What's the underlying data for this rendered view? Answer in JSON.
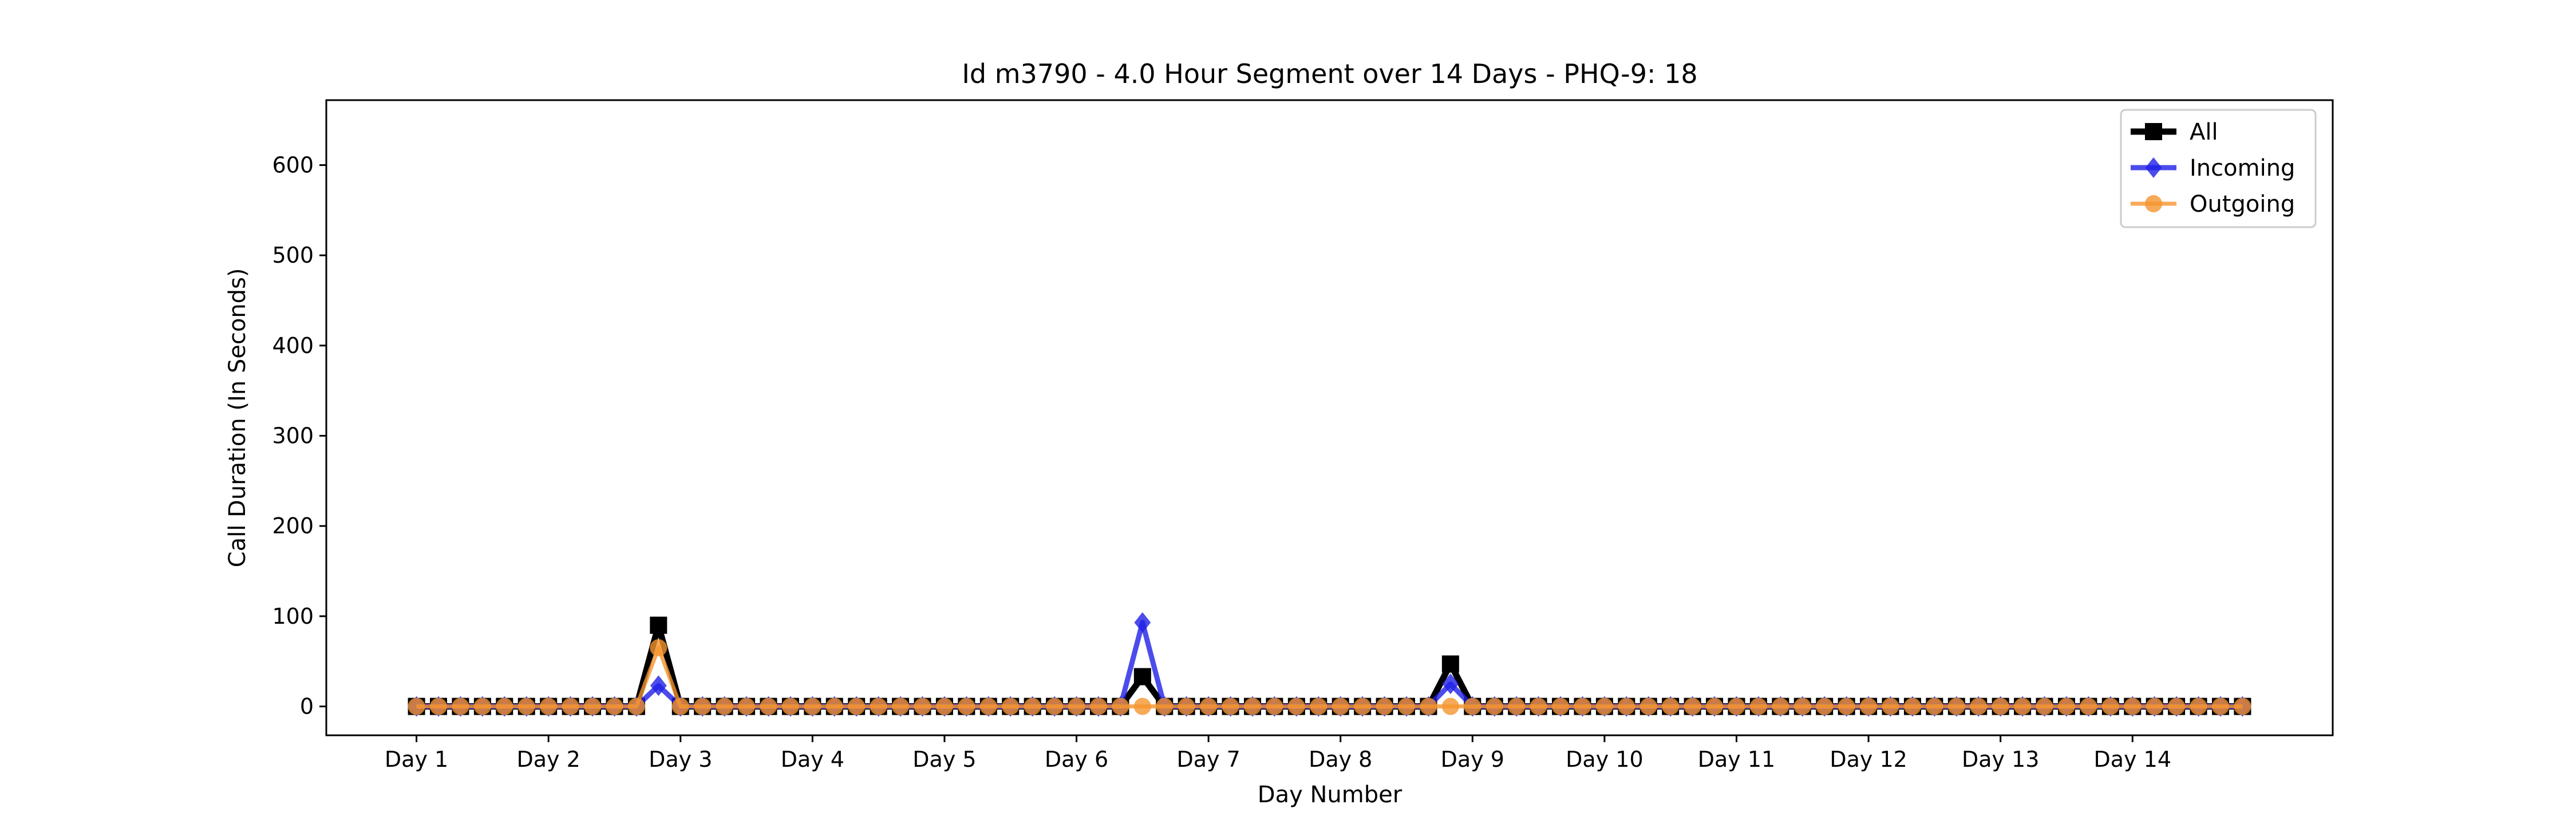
{
  "chart_data": {
    "type": "line",
    "title": "Id m3790 - 4.0 Hour Segment over 14 Days - PHQ-9: 18",
    "xlabel": "Day Number",
    "ylabel": "Call Duration (In Seconds)",
    "x": [
      0,
      1,
      2,
      3,
      4,
      5,
      6,
      7,
      8,
      9,
      10,
      11,
      12,
      13,
      14,
      15,
      16,
      17,
      18,
      19,
      20,
      21,
      22,
      23,
      24,
      25,
      26,
      27,
      28,
      29,
      30,
      31,
      32,
      33,
      34,
      35,
      36,
      37,
      38,
      39,
      40,
      41,
      42,
      43,
      44,
      45,
      46,
      47,
      48,
      49,
      50,
      51,
      52,
      53,
      54,
      55,
      56,
      57,
      58,
      59,
      60,
      61,
      62,
      63,
      64,
      65,
      66,
      67,
      68,
      69,
      70,
      71,
      72,
      73,
      74,
      75,
      76,
      77,
      78,
      79,
      80,
      81,
      82,
      83
    ],
    "x_ticks": [
      {
        "x": 0,
        "label": "Day 1"
      },
      {
        "x": 6,
        "label": "Day 2"
      },
      {
        "x": 12,
        "label": "Day 3"
      },
      {
        "x": 18,
        "label": "Day 4"
      },
      {
        "x": 24,
        "label": "Day 5"
      },
      {
        "x": 30,
        "label": "Day 6"
      },
      {
        "x": 36,
        "label": "Day 7"
      },
      {
        "x": 42,
        "label": "Day 8"
      },
      {
        "x": 48,
        "label": "Day 9"
      },
      {
        "x": 54,
        "label": "Day 10"
      },
      {
        "x": 60,
        "label": "Day 11"
      },
      {
        "x": 66,
        "label": "Day 12"
      },
      {
        "x": 72,
        "label": "Day 13"
      },
      {
        "x": 78,
        "label": "Day 14"
      }
    ],
    "y_ticks": [
      0,
      100,
      200,
      300,
      400,
      500,
      600
    ],
    "xlim": [
      -4.1,
      87.1
    ],
    "ylim": [
      -32,
      672
    ],
    "grid": false,
    "legend_position": "top-right",
    "series": [
      {
        "name": "All",
        "color": "#000000",
        "marker": "square",
        "values": [
          0,
          0,
          0,
          0,
          0,
          0,
          0,
          0,
          0,
          0,
          0,
          90,
          0,
          0,
          0,
          0,
          0,
          0,
          0,
          0,
          0,
          0,
          0,
          0,
          0,
          0,
          0,
          0,
          0,
          0,
          0,
          0,
          0,
          33,
          0,
          0,
          0,
          0,
          0,
          0,
          0,
          0,
          0,
          0,
          0,
          0,
          0,
          47,
          0,
          0,
          0,
          0,
          0,
          0,
          0,
          0,
          0,
          0,
          0,
          0,
          0,
          0,
          0,
          0,
          0,
          0,
          0,
          0,
          0,
          0,
          0,
          0,
          0,
          0,
          0,
          0,
          0,
          0,
          0,
          0,
          0,
          0,
          0,
          0
        ]
      },
      {
        "name": "Incoming",
        "color": "#1f1fe6",
        "marker": "diamond",
        "values": [
          0,
          0,
          0,
          0,
          0,
          0,
          0,
          0,
          0,
          0,
          0,
          23,
          0,
          0,
          0,
          0,
          0,
          0,
          0,
          0,
          0,
          0,
          0,
          0,
          0,
          0,
          0,
          0,
          0,
          0,
          0,
          0,
          0,
          93,
          0,
          0,
          0,
          0,
          0,
          0,
          0,
          0,
          0,
          0,
          0,
          0,
          0,
          25,
          0,
          0,
          0,
          0,
          0,
          0,
          0,
          0,
          0,
          0,
          0,
          0,
          0,
          0,
          0,
          0,
          0,
          0,
          0,
          0,
          0,
          0,
          0,
          0,
          0,
          0,
          0,
          0,
          0,
          0,
          0,
          0,
          0,
          0,
          0,
          0
        ]
      },
      {
        "name": "Outgoing",
        "color": "#f5952e",
        "marker": "circle",
        "values": [
          0,
          0,
          0,
          0,
          0,
          0,
          0,
          0,
          0,
          0,
          0,
          65,
          0,
          0,
          0,
          0,
          0,
          0,
          0,
          0,
          0,
          0,
          0,
          0,
          0,
          0,
          0,
          0,
          0,
          0,
          0,
          0,
          0,
          0,
          0,
          0,
          0,
          0,
          0,
          0,
          0,
          0,
          0,
          0,
          0,
          0,
          0,
          0,
          0,
          0,
          0,
          0,
          0,
          0,
          0,
          0,
          0,
          0,
          0,
          0,
          0,
          0,
          0,
          0,
          0,
          0,
          0,
          0,
          0,
          0,
          0,
          0,
          0,
          0,
          0,
          0,
          0,
          0,
          0,
          0,
          0,
          0,
          0,
          0
        ]
      }
    ]
  }
}
